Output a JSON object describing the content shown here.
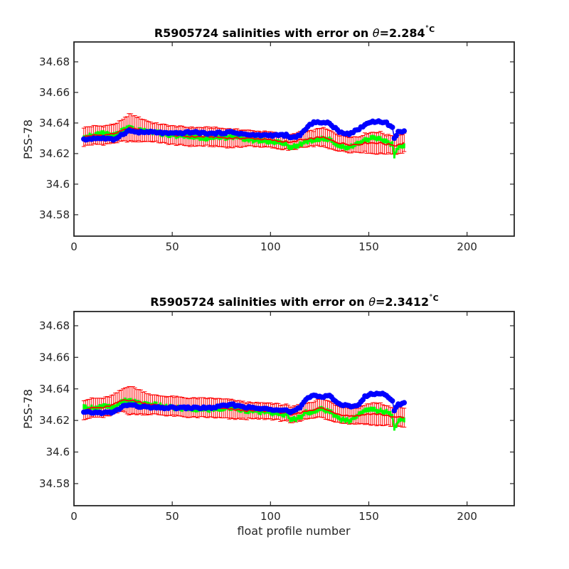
{
  "chart_data": [
    {
      "type": "scatter",
      "title": "R5905724 salinities with error on θ=2.284˚C",
      "title_prefix": "R5905724 salinities with error on ",
      "title_theta": "θ",
      "title_value": "=2.284",
      "title_unit": "˚C",
      "ylabel": "PSS-78",
      "xlabel": "",
      "xlim": [
        0,
        224
      ],
      "ylim": [
        34.566,
        34.693
      ],
      "xticks": [
        0,
        50,
        100,
        150,
        200
      ],
      "xtick_labels": [
        "0",
        "50",
        "100",
        "150",
        "200"
      ],
      "yticks": [
        34.58,
        34.6,
        34.62,
        34.64,
        34.66,
        34.68
      ],
      "ytick_labels": [
        "34.58",
        "34.6",
        "34.62",
        "34.64",
        "34.66",
        "34.68"
      ],
      "grid": false,
      "colors": {
        "mapped": "#ff0000",
        "float": "#0000ff",
        "calibrated": "#00ff00"
      },
      "knots": {
        "profile": [
          5,
          10,
          15,
          20,
          25,
          28,
          32,
          40,
          50,
          60,
          70,
          80,
          90,
          100,
          105,
          108,
          110,
          115,
          118,
          122,
          126,
          130,
          135,
          140,
          145,
          148,
          152,
          156,
          159,
          162,
          163,
          165,
          168
        ],
        "float": [
          34.629,
          34.63,
          34.63,
          34.629,
          34.633,
          34.635,
          34.634,
          34.634,
          34.633,
          34.634,
          34.633,
          34.634,
          34.632,
          34.632,
          34.632,
          34.632,
          34.63,
          34.632,
          34.636,
          34.641,
          34.64,
          34.64,
          34.634,
          34.633,
          34.636,
          34.639,
          34.641,
          34.641,
          34.64,
          34.637,
          34.63,
          34.634,
          34.635
        ],
        "calibrated": [
          34.631,
          34.632,
          34.633,
          34.632,
          34.635,
          34.637,
          34.635,
          34.634,
          34.632,
          34.631,
          34.63,
          34.631,
          34.629,
          34.628,
          34.627,
          34.626,
          34.624,
          34.626,
          34.628,
          34.629,
          34.63,
          34.629,
          34.625,
          34.624,
          34.627,
          34.629,
          34.63,
          34.629,
          34.628,
          34.626,
          34.619,
          34.624,
          34.625
        ],
        "mapped": [
          34.631,
          34.632,
          34.632,
          34.633,
          34.635,
          34.637,
          34.636,
          34.634,
          34.632,
          34.631,
          34.631,
          34.63,
          34.63,
          34.629,
          34.628,
          34.628,
          34.627,
          34.629,
          34.629,
          34.63,
          34.631,
          34.629,
          34.627,
          34.626,
          34.626,
          34.627,
          34.627,
          34.627,
          34.626,
          34.626,
          34.625,
          34.626,
          34.627
        ],
        "error": [
          0.006,
          0.006,
          0.006,
          0.006,
          0.007,
          0.009,
          0.008,
          0.006,
          0.006,
          0.006,
          0.006,
          0.006,
          0.005,
          0.005,
          0.005,
          0.005,
          0.005,
          0.005,
          0.005,
          0.005,
          0.006,
          0.006,
          0.005,
          0.005,
          0.005,
          0.006,
          0.007,
          0.007,
          0.006,
          0.006,
          0.005,
          0.006,
          0.006
        ]
      }
    },
    {
      "type": "scatter",
      "title": "R5905724 salinities with error on θ=2.3412˚C",
      "title_prefix": "R5905724 salinities with error on ",
      "title_theta": "θ",
      "title_value": "=2.3412",
      "title_unit": "˚C",
      "ylabel": "PSS-78",
      "xlabel": "float profile number",
      "xlim": [
        0,
        224
      ],
      "ylim": [
        34.566,
        34.689
      ],
      "xticks": [
        0,
        50,
        100,
        150,
        200
      ],
      "xtick_labels": [
        "0",
        "50",
        "100",
        "150",
        "200"
      ],
      "yticks": [
        34.58,
        34.6,
        34.62,
        34.64,
        34.66,
        34.68
      ],
      "ytick_labels": [
        "34.58",
        "34.6",
        "34.62",
        "34.64",
        "34.66",
        "34.68"
      ],
      "grid": false,
      "colors": {
        "mapped": "#ff0000",
        "float": "#0000ff",
        "calibrated": "#00ff00"
      },
      "knots": {
        "profile": [
          5,
          10,
          15,
          20,
          25,
          28,
          32,
          40,
          50,
          60,
          70,
          80,
          90,
          100,
          105,
          108,
          110,
          115,
          118,
          122,
          126,
          130,
          135,
          140,
          145,
          148,
          152,
          156,
          159,
          162,
          163,
          165,
          168
        ],
        "float": [
          34.625,
          34.625,
          34.625,
          34.625,
          34.629,
          34.63,
          34.629,
          34.628,
          34.628,
          34.628,
          34.628,
          34.63,
          34.628,
          34.627,
          34.627,
          34.627,
          34.625,
          34.628,
          34.633,
          34.636,
          34.635,
          34.636,
          34.63,
          34.629,
          34.63,
          34.635,
          34.637,
          34.637,
          34.636,
          34.633,
          34.626,
          34.63,
          34.631
        ],
        "calibrated": [
          34.628,
          34.628,
          34.629,
          34.628,
          34.632,
          34.633,
          34.631,
          34.63,
          34.628,
          34.627,
          34.627,
          34.628,
          34.626,
          34.625,
          34.624,
          34.624,
          34.62,
          34.622,
          34.625,
          34.626,
          34.627,
          34.626,
          34.621,
          34.62,
          34.624,
          34.626,
          34.627,
          34.626,
          34.625,
          34.623,
          34.615,
          34.62,
          34.621
        ],
        "mapped": [
          34.627,
          34.628,
          34.628,
          34.63,
          34.633,
          34.633,
          34.632,
          34.63,
          34.629,
          34.628,
          34.628,
          34.627,
          34.626,
          34.626,
          34.625,
          34.625,
          34.623,
          34.625,
          34.626,
          34.627,
          34.628,
          34.626,
          34.624,
          34.623,
          34.623,
          34.624,
          34.624,
          34.624,
          34.623,
          34.622,
          34.622,
          34.622,
          34.622
        ]
      }
    }
  ]
}
